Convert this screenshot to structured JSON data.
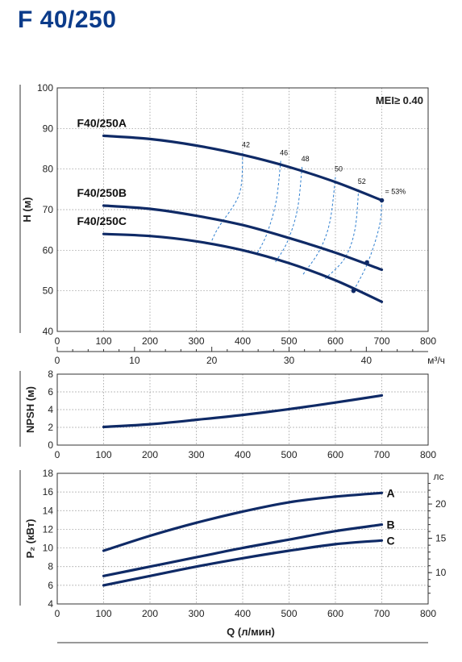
{
  "title": "F 40/250",
  "mei_label": "MEI≥ 0.40",
  "x_ticks": [
    0,
    100,
    200,
    300,
    400,
    500,
    600,
    700,
    800
  ],
  "x_label": "Q (л/мин)",
  "chart_data": [
    {
      "type": "line",
      "ylabel": "H (м)",
      "xlim": [
        0,
        800
      ],
      "ylim": [
        40,
        100
      ],
      "y_ticks": [
        40,
        50,
        60,
        70,
        80,
        90,
        100
      ],
      "grid": true,
      "secondary_x_axis": {
        "label": "м³/ч",
        "ticks": [
          0,
          10,
          20,
          30,
          40
        ],
        "range": [
          0,
          48
        ]
      },
      "series": [
        {
          "name": "F40/250A",
          "x": [
            100,
            200,
            300,
            400,
            500,
            600,
            700
          ],
          "y": [
            88.2,
            87.4,
            85.8,
            83.5,
            80.5,
            76.8,
            72.3
          ]
        },
        {
          "name": "F40/250B",
          "x": [
            100,
            200,
            300,
            400,
            500,
            600,
            700
          ],
          "y": [
            71,
            70.2,
            68.5,
            66.2,
            63,
            59.4,
            55.2
          ]
        },
        {
          "name": "F40/250C",
          "x": [
            100,
            200,
            300,
            400,
            500,
            600,
            700
          ],
          "y": [
            64,
            63.5,
            62.2,
            60,
            56.8,
            52.6,
            47.3
          ]
        }
      ],
      "efficiency_lines": [
        {
          "label": "42",
          "points": [
            [
              400,
              84
            ],
            [
              393,
              74
            ],
            [
              350,
              66
            ],
            [
              340,
              64
            ],
            [
              332,
              62
            ]
          ]
        },
        {
          "label": "46",
          "points": [
            [
              482,
              82
            ],
            [
              472,
              72
            ],
            [
              452,
              64
            ],
            [
              430,
              59
            ]
          ]
        },
        {
          "label": "48",
          "points": [
            [
              528,
              80.5
            ],
            [
              518,
              70
            ],
            [
              496,
              62
            ],
            [
              470,
              57
            ]
          ]
        },
        {
          "label": "50",
          "points": [
            [
              600,
              78
            ],
            [
              588,
              67
            ],
            [
              566,
              60
            ],
            [
              530,
              54
            ]
          ]
        },
        {
          "label": "52",
          "points": [
            [
              650,
              75
            ],
            [
              642,
              65
            ],
            [
              620,
              58
            ],
            [
              578,
              53
            ]
          ]
        },
        {
          "label": "= 53%",
          "points": [
            [
              700,
              72.3
            ],
            [
              695,
              66
            ],
            [
              670,
              57
            ],
            [
              639,
              50
            ]
          ]
        }
      ],
      "operating_points": [
        [
          700,
          72.3
        ],
        [
          668,
          57
        ],
        [
          639,
          50
        ]
      ],
      "annotation": "MEI≥ 0.40"
    },
    {
      "type": "line",
      "ylabel": "NPSH (м)",
      "xlim": [
        0,
        800
      ],
      "ylim": [
        0,
        8
      ],
      "y_ticks": [
        0,
        2,
        4,
        6,
        8
      ],
      "grid": true,
      "series": [
        {
          "name": "",
          "x": [
            100,
            200,
            300,
            400,
            500,
            600,
            700
          ],
          "y": [
            2.05,
            2.35,
            2.85,
            3.4,
            4.05,
            4.8,
            5.6
          ]
        }
      ]
    },
    {
      "type": "line",
      "ylabel": "P₂ (кВт)",
      "xlabel": "Q (л/мин)",
      "xlim": [
        0,
        800
      ],
      "ylim": [
        4,
        18
      ],
      "y_ticks": [
        4,
        6,
        8,
        10,
        12,
        14,
        16,
        18
      ],
      "grid": true,
      "secondary_y_axis": {
        "label": "лс",
        "ticks": [
          10,
          15,
          20
        ]
      },
      "series": [
        {
          "name": "A",
          "x": [
            100,
            200,
            300,
            400,
            500,
            600,
            700
          ],
          "y": [
            9.7,
            11.3,
            12.7,
            13.9,
            14.9,
            15.5,
            15.9
          ]
        },
        {
          "name": "B",
          "x": [
            100,
            200,
            300,
            400,
            500,
            600,
            700
          ],
          "y": [
            7,
            8,
            9,
            10,
            10.9,
            11.8,
            12.5
          ]
        },
        {
          "name": "C",
          "x": [
            100,
            200,
            300,
            400,
            500,
            600,
            700
          ],
          "y": [
            6,
            7,
            8,
            8.9,
            9.7,
            10.4,
            10.8
          ]
        }
      ]
    }
  ]
}
